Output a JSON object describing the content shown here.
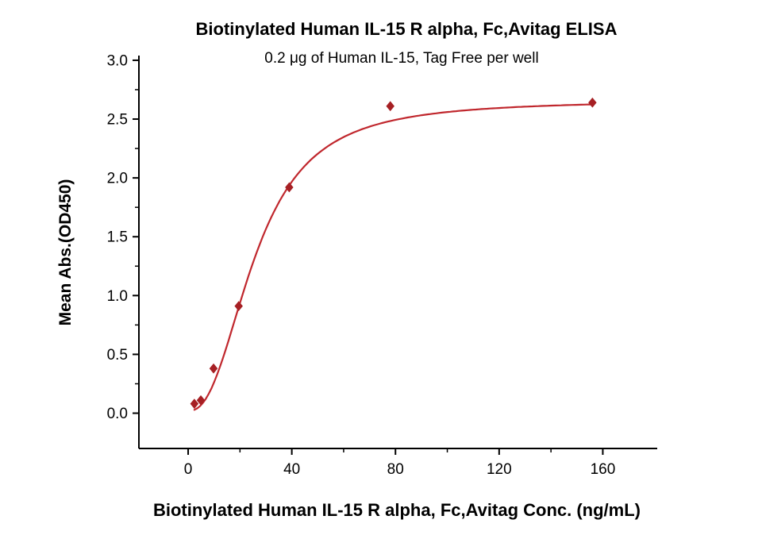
{
  "chart_data": {
    "type": "scatter",
    "title": "Biotinylated Human IL-15 R alpha, Fc,Avitag ELISA",
    "subtitle": "0.2 μg of Human IL-15, Tag Free per well",
    "xlabel": "Biotinylated Human IL-15 R alpha, Fc,Avitag Conc. (ng/mL)",
    "ylabel": "Mean Abs.(OD450)",
    "series": [
      {
        "name": "Biotinylated Human IL-15 R alpha, Fc,Avitag",
        "x": [
          2.4,
          4.9,
          9.8,
          19.5,
          39,
          78,
          156
        ],
        "y": [
          0.08,
          0.11,
          0.38,
          0.91,
          1.92,
          2.61,
          2.64
        ]
      }
    ],
    "x_ticks": [
      0,
      40,
      80,
      120,
      160
    ],
    "y_ticks": [
      0.0,
      0.5,
      1.0,
      1.5,
      2.0,
      2.5,
      3.0
    ],
    "y_tick_decimals": 1,
    "xlim": [
      -19,
      181
    ],
    "ylim": [
      -0.3,
      3.04
    ],
    "fit_4pl": {
      "min": 0.02,
      "max": 2.66,
      "ec50": 26,
      "hill": 2.4
    },
    "curve_x_range": [
      2.4,
      156
    ],
    "line_color": "#c0272d",
    "marker_color": "#a62024",
    "axis_color": "#000000",
    "legend": "none",
    "grid": false
  }
}
